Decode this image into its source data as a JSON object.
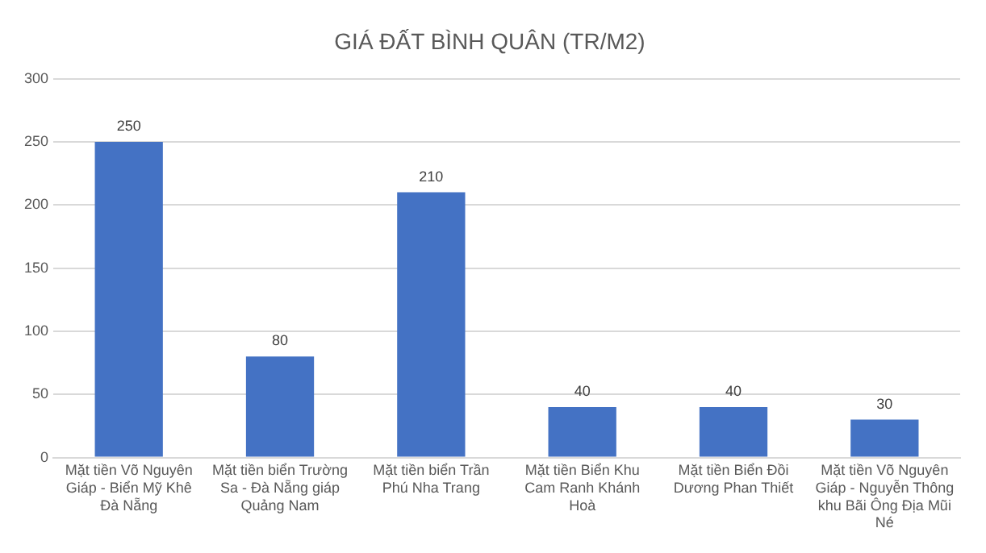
{
  "chart_data": {
    "type": "bar",
    "title": "GIÁ ĐẤT BÌNH QUÂN (TR/M2)",
    "categories": [
      "Mặt tiền Võ Nguyên Giáp - Biển Mỹ Khê Đà Nẵng",
      "Mặt tiền biển Trường Sa - Đà Nẵng giáp Quảng Nam",
      "Mặt tiền biển Trần Phú Nha Trang",
      "Mặt tiền Biển Khu Cam Ranh Khánh Hoà",
      "Mặt tiền Biển Đồi Dương Phan Thiết",
      "Mặt tiền Võ Nguyên Giáp - Nguyễn Thông khu Bãi Ông Địa Mũi Né"
    ],
    "values": [
      250,
      80,
      210,
      40,
      40,
      30
    ],
    "color": "#4472c4",
    "ylim": [
      0,
      300
    ],
    "yticks": [
      0,
      50,
      100,
      150,
      200,
      250,
      300
    ],
    "grid": "y",
    "data_labels": true
  }
}
